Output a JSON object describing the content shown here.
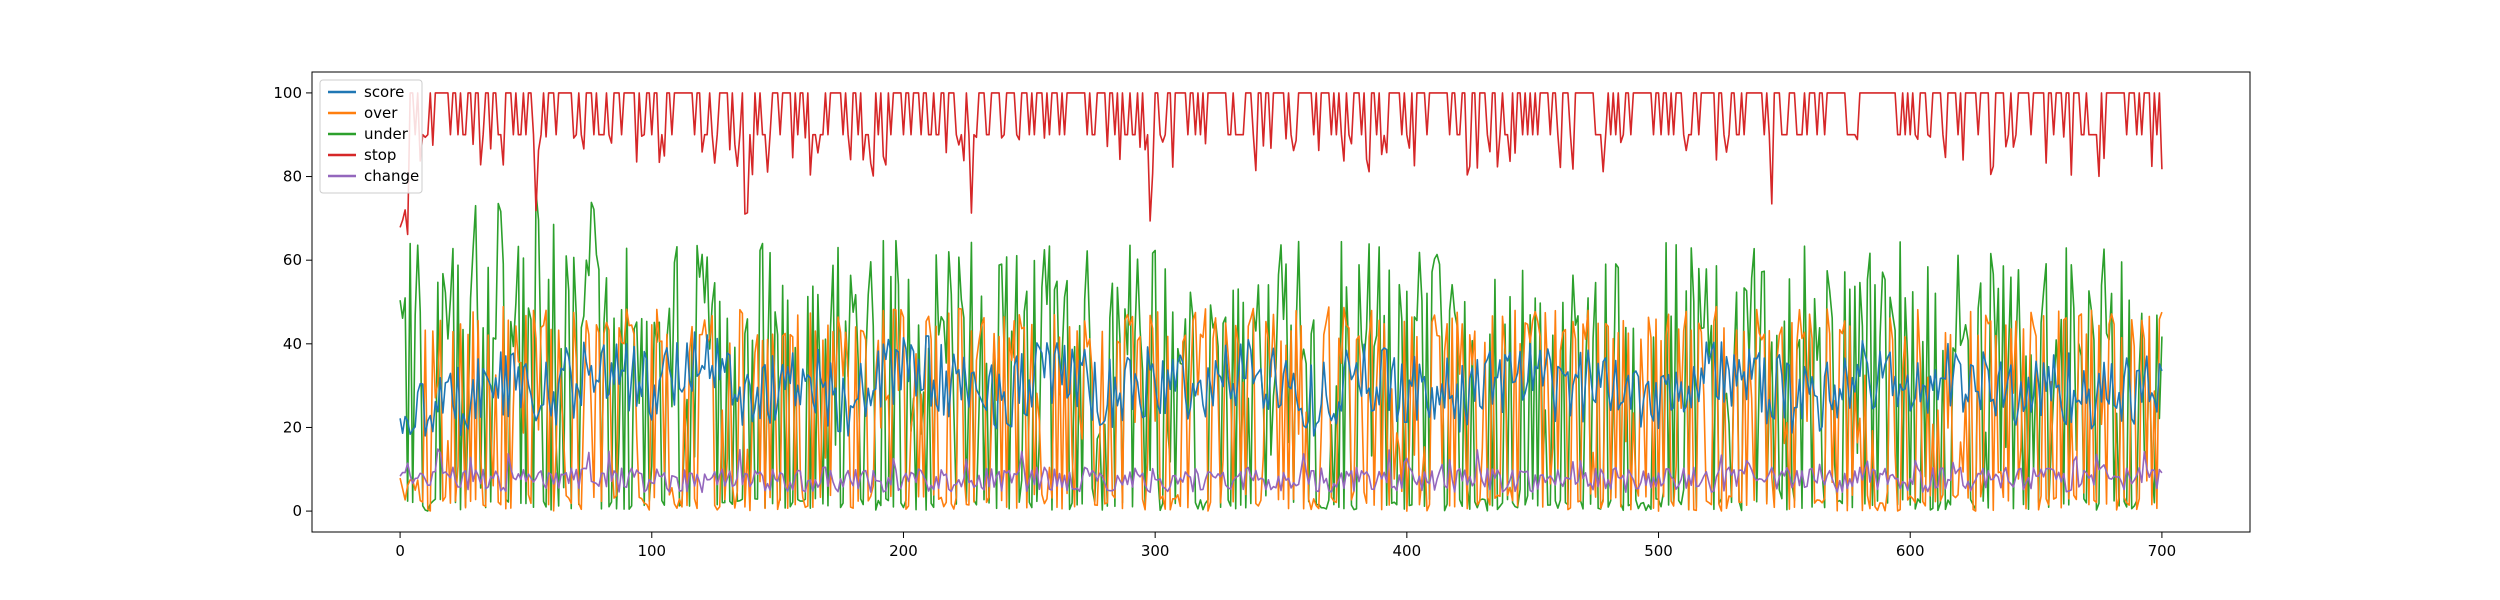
{
  "chart_data": {
    "type": "line",
    "title": "",
    "xlabel": "",
    "ylabel": "",
    "xlim": [
      -35,
      735
    ],
    "ylim": [
      -5,
      105
    ],
    "x_ticks": [
      0,
      100,
      200,
      300,
      400,
      500,
      600,
      700
    ],
    "y_ticks": [
      0,
      20,
      40,
      60,
      80,
      100
    ],
    "x_tick_labels": [
      "0",
      "100",
      "200",
      "300",
      "400",
      "500",
      "600",
      "700"
    ],
    "y_tick_labels": [
      "0",
      "20",
      "40",
      "60",
      "80",
      "100"
    ],
    "grid": false,
    "legend_position": "upper-left",
    "n_points": 701,
    "series": [
      {
        "name": "score",
        "color": "#1f77b4",
        "values_sample_every_20": [
          21,
          26,
          31,
          28,
          35,
          29,
          38,
          27,
          33,
          25,
          36,
          30,
          28,
          34,
          27,
          31,
          29,
          35,
          26,
          32,
          30,
          27,
          33,
          29,
          31,
          28,
          34,
          30,
          26,
          33,
          29,
          32,
          28,
          30,
          27,
          31
        ]
      },
      {
        "name": "over",
        "color": "#ff7f0e",
        "values_sample_every_20": [
          3,
          0,
          45,
          12,
          48,
          5,
          30,
          47,
          2,
          40,
          18,
          48,
          0,
          35,
          46,
          9,
          28,
          47,
          3,
          44,
          20,
          48,
          6,
          38,
          46,
          1,
          32,
          47,
          10,
          43,
          25,
          48,
          4,
          40,
          46,
          8
        ]
      },
      {
        "name": "under",
        "color": "#2ca02c",
        "values_sample_every_20": [
          45,
          60,
          10,
          55,
          3,
          68,
          22,
          4,
          58,
          12,
          50,
          0,
          62,
          18,
          2,
          54,
          30,
          0,
          60,
          8,
          46,
          0,
          57,
          15,
          4,
          63,
          26,
          0,
          52,
          10,
          40,
          0,
          58,
          14,
          3,
          48
        ]
      },
      {
        "name": "stop",
        "color": "#d62728",
        "values_sample_every_20": [
          68,
          100,
          90,
          100,
          100,
          85,
          100,
          100,
          95,
          100,
          100,
          80,
          100,
          100,
          90,
          100,
          100,
          85,
          100,
          100,
          95,
          100,
          100,
          88,
          100,
          100,
          92,
          100,
          100,
          80,
          100,
          100,
          90,
          100,
          100,
          90
        ]
      },
      {
        "name": "change",
        "color": "#9467bd",
        "values_sample_every_20": [
          8,
          7,
          6,
          8,
          7,
          9,
          6,
          7,
          8,
          6,
          9,
          7,
          6,
          8,
          7,
          6,
          9,
          7,
          8,
          6,
          7,
          9,
          6,
          8,
          7,
          6,
          8,
          7,
          9,
          6,
          7,
          8,
          6,
          7,
          9,
          7
        ]
      }
    ]
  }
}
